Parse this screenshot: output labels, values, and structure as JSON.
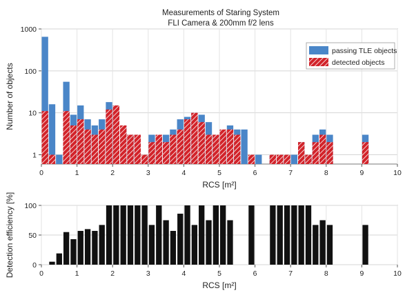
{
  "chart_data": [
    {
      "type": "bar",
      "scale": "log",
      "title": "Measurements of Staring System",
      "subtitle": "FLI Camera & 200mm f/2 lens",
      "xlabel": "RCS [m²]",
      "ylabel": "Number of objects",
      "xlim": [
        0,
        10
      ],
      "ylim": [
        0.6,
        1000
      ],
      "bin_width": 0.2,
      "x_ticks": [
        "0",
        "1",
        "2",
        "3",
        "4",
        "5",
        "6",
        "7",
        "8",
        "9",
        "10"
      ],
      "y_ticks": [
        "1",
        "10",
        "100",
        "1000"
      ],
      "grid": true,
      "legend_position": "top-right",
      "colors": {
        "passing": "#4a86c8",
        "detected": "#d2232a",
        "hatch": "#ffffff"
      },
      "x": [
        0.1,
        0.3,
        0.5,
        0.7,
        0.9,
        1.1,
        1.3,
        1.5,
        1.7,
        1.9,
        2.1,
        2.3,
        2.5,
        2.7,
        2.9,
        3.1,
        3.3,
        3.5,
        3.7,
        3.9,
        4.1,
        4.3,
        4.5,
        4.7,
        4.9,
        5.1,
        5.3,
        5.5,
        5.7,
        5.9,
        6.1,
        6.3,
        6.5,
        6.7,
        6.9,
        7.1,
        7.3,
        7.5,
        7.7,
        7.9,
        8.1,
        8.3,
        8.5,
        8.7,
        8.9,
        9.1,
        9.3,
        9.5,
        9.7
      ],
      "series": [
        {
          "name": "passing TLE objects",
          "values": [
            650,
            16,
            1,
            55,
            9,
            15,
            7,
            5,
            7,
            18,
            15,
            5,
            3,
            3,
            1,
            3,
            3,
            3,
            4,
            7,
            8,
            10,
            9,
            6,
            3,
            3,
            5,
            4,
            4,
            1,
            1,
            0,
            1,
            1,
            1,
            1,
            2,
            1,
            3,
            4,
            3,
            0,
            0,
            0,
            0,
            3,
            0,
            0,
            0
          ]
        },
        {
          "name": "detected objects",
          "values": [
            11,
            1,
            0,
            11,
            5,
            7,
            4,
            3,
            4,
            12,
            15,
            5,
            3,
            3,
            1,
            2,
            3,
            2,
            3,
            4,
            7,
            10,
            6,
            3,
            3,
            4,
            4,
            3,
            0,
            1,
            0,
            0,
            1,
            1,
            1,
            0,
            2,
            1,
            2,
            3,
            2,
            0,
            0,
            0,
            0,
            2,
            0,
            0,
            0
          ]
        }
      ]
    },
    {
      "type": "bar",
      "xlabel": "RCS [m²]",
      "ylabel": "Detection efficiency [%]",
      "xlim": [
        0,
        10
      ],
      "ylim": [
        0,
        100
      ],
      "x_ticks": [
        "0",
        "1",
        "2",
        "3",
        "4",
        "5",
        "6",
        "7",
        "8",
        "9",
        "10"
      ],
      "y_ticks": [
        "0",
        "50",
        "100"
      ],
      "grid": true,
      "colors": {
        "bar": "#111111"
      },
      "x": [
        0.1,
        0.3,
        0.5,
        0.7,
        0.9,
        1.1,
        1.3,
        1.5,
        1.7,
        1.9,
        2.1,
        2.3,
        2.5,
        2.7,
        2.9,
        3.1,
        3.3,
        3.5,
        3.7,
        3.9,
        4.1,
        4.3,
        4.5,
        4.7,
        4.9,
        5.1,
        5.3,
        5.5,
        5.7,
        5.9,
        6.1,
        6.3,
        6.5,
        6.7,
        6.9,
        7.1,
        7.3,
        7.5,
        7.7,
        7.9,
        8.1,
        8.3,
        8.5,
        8.7,
        8.9,
        9.1,
        9.3,
        9.5,
        9.7
      ],
      "values": [
        0,
        5,
        19,
        55,
        43,
        57,
        60,
        57,
        67,
        100,
        100,
        100,
        100,
        100,
        100,
        67,
        100,
        75,
        57,
        86,
        100,
        67,
        100,
        75,
        100,
        100,
        75,
        0,
        0,
        100,
        0,
        0,
        100,
        100,
        100,
        100,
        100,
        100,
        67,
        75,
        67,
        0,
        0,
        0,
        0,
        67,
        0,
        0,
        0
      ]
    }
  ]
}
